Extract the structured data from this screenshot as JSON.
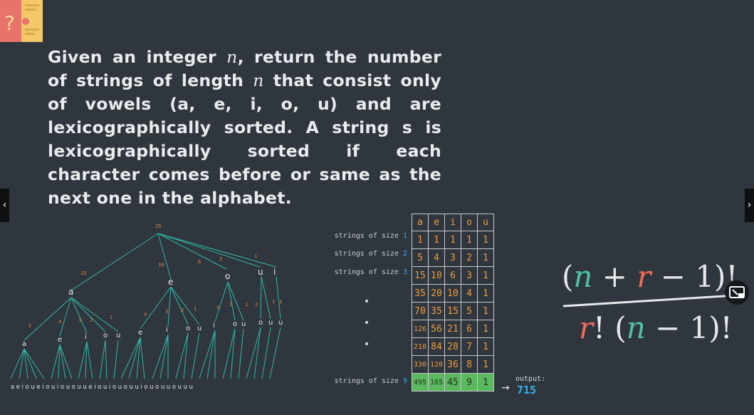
{
  "problem": {
    "line1_a": "Given an integer ",
    "n": "n",
    "line1_b": ", return the number of strings of length ",
    "line1_c": " that consist only of vowels (a, e, i, o, u) and are lexicographically sorted. A string s is lexicographically sorted if each character comes before or same as the next one in the alphabet."
  },
  "nav": {
    "left": "‹",
    "right": "›"
  },
  "tree": {
    "root_count": "35",
    "level1": [
      {
        "count": "15",
        "letter": "a"
      },
      {
        "count": "10",
        "letter": "e"
      },
      {
        "count": "6",
        "letter": "i"
      },
      {
        "count": "3",
        "letter": "o"
      },
      {
        "count": "1",
        "letter": "u"
      }
    ],
    "level2_letters": [
      "a",
      "e",
      "i",
      "o",
      "u",
      "e",
      "i",
      "o",
      "u",
      "i",
      "o",
      "u",
      "o",
      "u",
      "u"
    ],
    "level2_counts": [
      "5",
      "4",
      "3",
      "2",
      "1",
      "4",
      "3",
      "2",
      "1",
      "3",
      "2",
      "1",
      "2",
      "1",
      "1"
    ],
    "leaf_letters": "a e i o u e i o u i o u o u u e i o u i o u o u u i o u o u u o u u u"
  },
  "rows": {
    "size1": "strings of size ",
    "size1_n": "1",
    "size2": "strings of size ",
    "size2_n": "2",
    "size3": "strings of size ",
    "size3_n": "3",
    "size9": "strings of size ",
    "size9_n": "9",
    "dot": "•"
  },
  "grid": {
    "headers": [
      "a",
      "e",
      "i",
      "o",
      "u"
    ],
    "rows": [
      [
        "1",
        "1",
        "1",
        "1",
        "1"
      ],
      [
        "5",
        "4",
        "3",
        "2",
        "1"
      ],
      [
        "15",
        "10",
        "6",
        "3",
        "1"
      ],
      [
        "35",
        "20",
        "10",
        "4",
        "1"
      ],
      [
        "70",
        "35",
        "15",
        "5",
        "1"
      ],
      [
        "126",
        "56",
        "21",
        "6",
        "1"
      ],
      [
        "210",
        "84",
        "28",
        "7",
        "1"
      ],
      [
        "330",
        "120",
        "36",
        "8",
        "1"
      ]
    ],
    "last": [
      "495",
      "165",
      "45",
      "9",
      "1"
    ]
  },
  "output": {
    "label": "output:",
    "value": "715",
    "arrow": "→"
  },
  "formula": {
    "open": "(",
    "n": "n",
    "plus": " + ",
    "r": "r",
    "minus_one": " − 1)!",
    "r2": "r",
    "den_rest": "! (",
    "n2": "n",
    "den_tail": " − 1)!"
  },
  "colors": {
    "accent_blue": "#35b3f0",
    "orange": "#ee9c3c",
    "teal": "#2fb9a8",
    "green_row": "#5ab85e",
    "formula_r": "#f26d5b",
    "formula_n": "#4fc3a1"
  }
}
